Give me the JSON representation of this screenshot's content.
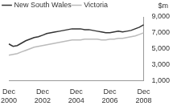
{
  "chart_data": {
    "type": "line",
    "y_label": "$m",
    "categories": [
      "Dec 2000",
      null,
      null,
      null,
      null,
      null,
      null,
      null,
      "Dec 2002",
      null,
      null,
      null,
      null,
      null,
      null,
      null,
      "Dec 2004",
      null,
      null,
      null,
      null,
      null,
      null,
      null,
      "Dec 2006",
      null,
      null,
      null,
      null,
      null,
      null,
      null,
      "Dec 2008"
    ],
    "series": [
      {
        "name": "New South Wales",
        "color": "#333333",
        "values": [
          5600,
          5300,
          5400,
          5700,
          6000,
          6200,
          6400,
          6500,
          6700,
          6900,
          7000,
          7100,
          7200,
          7300,
          7400,
          7500,
          7500,
          7500,
          7400,
          7400,
          7300,
          7200,
          7100,
          7000,
          7000,
          7100,
          7200,
          7100,
          7200,
          7300,
          7500,
          7700,
          8000
        ]
      },
      {
        "name": "Victoria",
        "color": "#bbbbbb",
        "values": [
          4200,
          4300,
          4400,
          4600,
          4800,
          5000,
          5200,
          5300,
          5400,
          5500,
          5600,
          5700,
          5800,
          5900,
          6000,
          6100,
          6100,
          6100,
          6200,
          6200,
          6200,
          6200,
          6100,
          6100,
          6200,
          6200,
          6300,
          6300,
          6400,
          6500,
          6600,
          6800,
          7000
        ]
      }
    ],
    "ylim": [
      1000,
      9000
    ],
    "yticks": [
      1000,
      3000,
      5000,
      7000,
      9000
    ],
    "grid": false,
    "legend": "top-left"
  }
}
